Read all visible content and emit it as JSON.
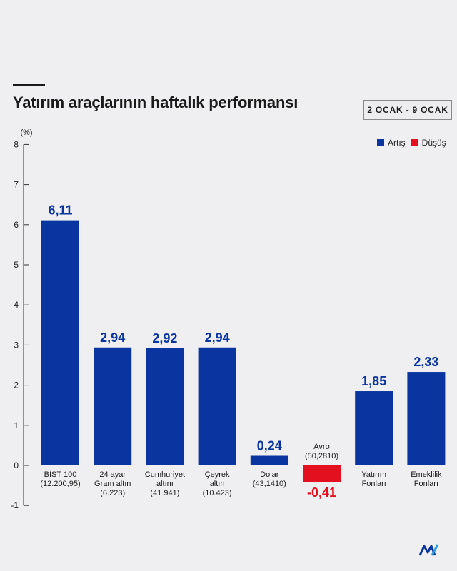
{
  "header": {
    "title": "Yatırım araçlarının haftalık performansı",
    "date_range": "2 OCAK - 9 OCAK"
  },
  "legend": {
    "items": [
      {
        "label": "Artış",
        "color": "#0a34a0"
      },
      {
        "label": "Düşüş",
        "color": "#e3101f"
      }
    ]
  },
  "colors": {
    "positive": "#0a34a0",
    "negative": "#e3101f"
  },
  "icons": {
    "logo": "mv-logo"
  },
  "chart_data": {
    "type": "bar",
    "ylabel": "(%)",
    "ylim": [
      -1,
      8
    ],
    "yticks": [
      -1,
      0,
      1,
      2,
      3,
      4,
      5,
      6,
      7,
      8
    ],
    "grid": false,
    "legend_position": "top-right",
    "categories": [
      [
        "BIST 100",
        "(12.200,95)"
      ],
      [
        "24 ayar",
        "Gram altın",
        "(6.223)"
      ],
      [
        "Cumhuriyet",
        "altını",
        "(41.941)"
      ],
      [
        "Çeyrek",
        "altın",
        "(10.423)"
      ],
      [
        "Dolar",
        "(43,1410)"
      ],
      [
        "Avro",
        "(50,2810)"
      ],
      [
        "Yatırım",
        "Fonları"
      ],
      [
        "Emeklilik",
        "Fonları"
      ]
    ],
    "values": [
      6.11,
      2.94,
      2.92,
      2.94,
      0.24,
      -0.41,
      1.85,
      2.33
    ],
    "value_labels": [
      "6,11",
      "2,94",
      "2,92",
      "2,94",
      "0,24",
      "-0,41",
      "1,85",
      "2,33"
    ]
  }
}
